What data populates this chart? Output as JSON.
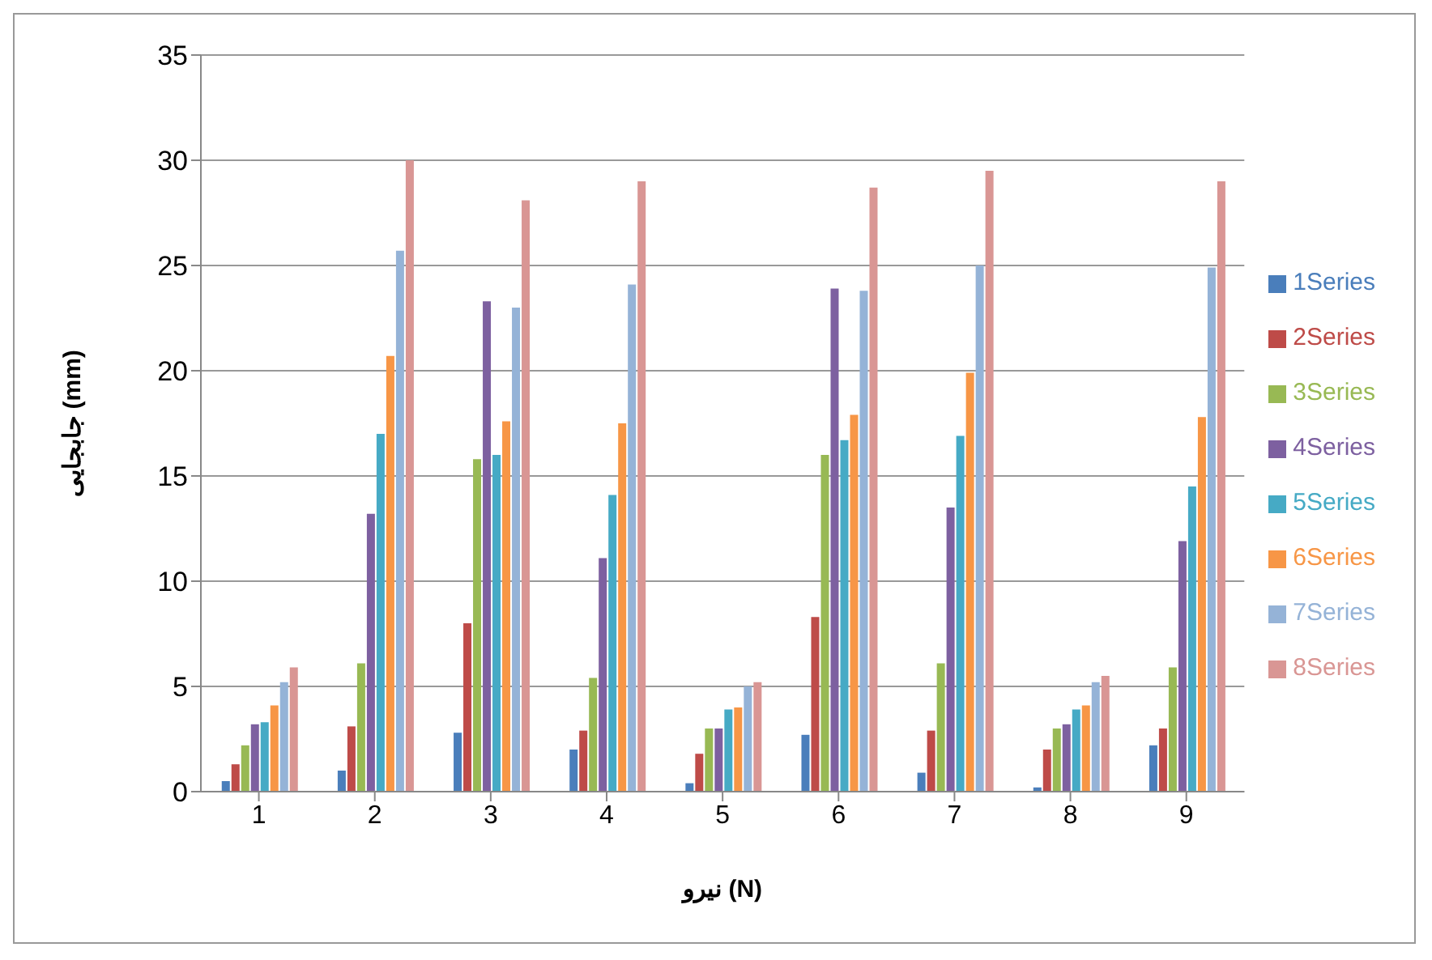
{
  "chart_data": {
    "type": "bar",
    "xlabel": "نیرو  (N)",
    "ylabel": "جابجایی  (mm)",
    "categories": [
      "1",
      "2",
      "3",
      "4",
      "5",
      "6",
      "7",
      "8",
      "9"
    ],
    "series": [
      {
        "name": "1Series",
        "color": "#4a7ebb",
        "values": [
          0.5,
          1.0,
          2.8,
          2.0,
          0.4,
          2.7,
          0.9,
          0.2,
          2.2
        ]
      },
      {
        "name": "2Series",
        "color": "#be4b48",
        "values": [
          1.3,
          3.1,
          8.0,
          2.9,
          1.8,
          8.3,
          2.9,
          2.0,
          3.0
        ]
      },
      {
        "name": "3Series",
        "color": "#98b954",
        "values": [
          2.2,
          6.1,
          15.8,
          5.4,
          3.0,
          16.0,
          6.1,
          3.0,
          5.9
        ]
      },
      {
        "name": "4Series",
        "color": "#7d60a0",
        "values": [
          3.2,
          13.2,
          23.3,
          11.1,
          3.0,
          23.9,
          13.5,
          3.2,
          11.9
        ]
      },
      {
        "name": "5Series",
        "color": "#46aac5",
        "values": [
          3.3,
          17.0,
          16.0,
          14.1,
          3.9,
          16.7,
          16.9,
          3.9,
          14.5
        ]
      },
      {
        "name": "6Series",
        "color": "#f79646",
        "values": [
          4.1,
          20.7,
          17.6,
          17.5,
          4.0,
          17.9,
          19.9,
          4.1,
          17.8
        ]
      },
      {
        "name": "7Series",
        "color": "#95b3d7",
        "values": [
          5.2,
          25.7,
          23.0,
          24.1,
          5.0,
          23.8,
          25.0,
          5.2,
          24.9
        ]
      },
      {
        "name": "8Series",
        "color": "#d99694",
        "values": [
          5.9,
          30.0,
          28.1,
          29.0,
          5.2,
          28.7,
          29.5,
          5.5,
          29.0
        ]
      }
    ],
    "ylim": [
      0,
      35
    ],
    "yticks": [
      0,
      5,
      10,
      15,
      20,
      25,
      30,
      35
    ],
    "grid": "y",
    "legend": "right"
  }
}
